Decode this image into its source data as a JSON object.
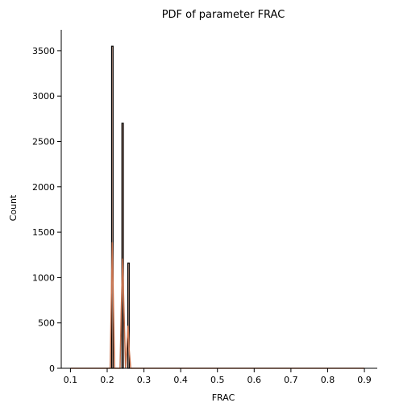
{
  "chart_data": {
    "type": "bar",
    "title": "PDF of parameter FRAC",
    "xlabel": "FRAC",
    "ylabel": "Count",
    "xlim": [
      0.075,
      0.935
    ],
    "ylim": [
      0,
      3730
    ],
    "x_ticks": [
      0.1,
      0.2,
      0.3,
      0.4,
      0.5,
      0.6,
      0.7,
      0.8,
      0.9
    ],
    "x_tick_labels": [
      "0.1",
      "0.2",
      "0.3",
      "0.4",
      "0.5",
      "0.6",
      "0.7",
      "0.8",
      "0.9"
    ],
    "y_ticks": [
      0,
      500,
      1000,
      1500,
      2000,
      2500,
      3000,
      3500
    ],
    "y_tick_labels": [
      "0",
      "500",
      "1000",
      "1500",
      "2000",
      "2500",
      "3000",
      "3500"
    ],
    "bin_edges": [
      0.212,
      0.216,
      0.24,
      0.244,
      0.256,
      0.26
    ],
    "bins": [
      {
        "x0": 0.212,
        "x1": 0.216,
        "count": 3550
      },
      {
        "x0": 0.24,
        "x1": 0.244,
        "count": 2700
      },
      {
        "x0": 0.256,
        "x1": 0.26,
        "count": 1160
      }
    ],
    "kde": [
      {
        "x": 0.1,
        "y": 0
      },
      {
        "x": 0.2,
        "y": 0
      },
      {
        "x": 0.208,
        "y": 0
      },
      {
        "x": 0.211,
        "y": 700
      },
      {
        "x": 0.214,
        "y": 1390
      },
      {
        "x": 0.217,
        "y": 700
      },
      {
        "x": 0.22,
        "y": 0
      },
      {
        "x": 0.235,
        "y": 0
      },
      {
        "x": 0.238,
        "y": 600
      },
      {
        "x": 0.242,
        "y": 1210
      },
      {
        "x": 0.246,
        "y": 600
      },
      {
        "x": 0.25,
        "y": 0
      },
      {
        "x": 0.253,
        "y": 200
      },
      {
        "x": 0.257,
        "y": 470
      },
      {
        "x": 0.26,
        "y": 200
      },
      {
        "x": 0.264,
        "y": 0
      },
      {
        "x": 0.3,
        "y": 0
      },
      {
        "x": 0.9,
        "y": 0
      }
    ],
    "colors": {
      "bar_fill": "#c8714c",
      "bar_edge": "#000000",
      "kde_line": "#c8714c",
      "axis": "#000000"
    },
    "grid": false,
    "legend": "none"
  }
}
